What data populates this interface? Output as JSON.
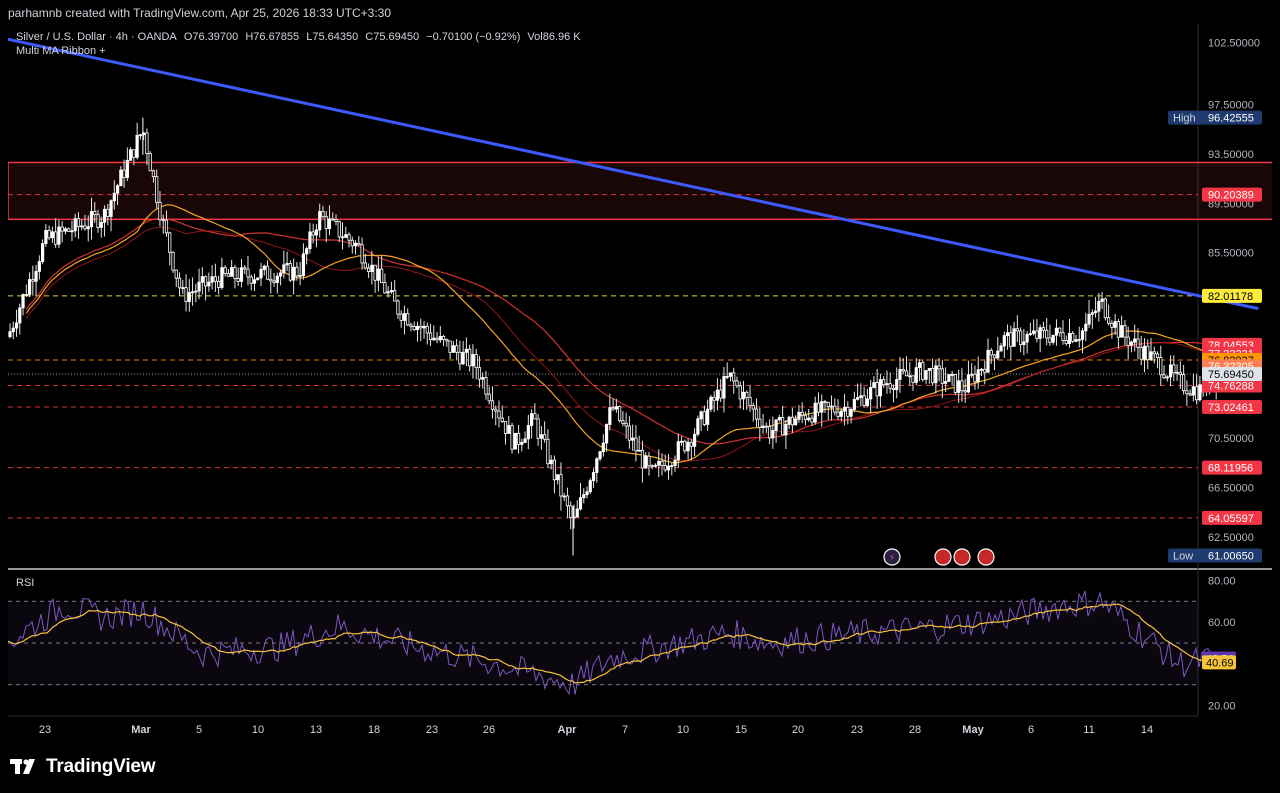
{
  "header": {
    "caption": "parhamnb created with TradingView.com, Apr 25, 2026 18:33 UTC+3:30"
  },
  "legend": {
    "symbol": "Silver / U.S. Dollar · 4h · OANDA",
    "open": "O76.39700",
    "high": "H76.67855",
    "low": "L75.64350",
    "close": "C75.69450",
    "change": "−0.70100 (−0.92%)",
    "volume": "Vol86.96 K",
    "indicator": "Multi MA Ribbon +"
  },
  "rsi": {
    "label": "RSI",
    "value": "42.54",
    "ma_value": "40.69",
    "axis_ticks": [
      "80.00",
      "60.00",
      "20.00"
    ]
  },
  "price_axis": {
    "ticks": [
      "102.50000",
      "97.50000",
      "93.50000",
      "89.50000",
      "85.50000",
      "70.50000",
      "66.50000",
      "62.50000"
    ],
    "high_label": "High",
    "high_value": "96.42555",
    "low_label": "Low",
    "low_value": "61.00650",
    "current_price": "75.69450"
  },
  "time_axis": {
    "ticks": [
      "23",
      "Mar",
      "5",
      "10",
      "13",
      "18",
      "23",
      "26",
      "Apr",
      "7",
      "10",
      "15",
      "20",
      "23",
      "28",
      "May",
      "6",
      "11",
      "14"
    ]
  },
  "levels": [
    {
      "label": "90.20389",
      "value": 90.20389,
      "color": "#f23645",
      "style": "dashed"
    },
    {
      "label": "82.01178",
      "value": 82.01178,
      "color": "#ffeb3b",
      "style": "dashed"
    },
    {
      "label": "78.04553",
      "value": 78.04553,
      "color": "#f23645",
      "style": "none"
    },
    {
      "label": "77.33231",
      "value": 77.33231,
      "color": "#f23645",
      "style": "none"
    },
    {
      "label": "76.82037",
      "value": 76.82037,
      "color": "#ff9800",
      "style": "dashed"
    },
    {
      "label": "76.32305",
      "value": 76.32305,
      "color": "#ff7f50",
      "style": "none"
    },
    {
      "label": "74.76288",
      "value": 74.76288,
      "color": "#f23645",
      "style": "dashed"
    },
    {
      "label": "73.02461",
      "value": 73.02461,
      "color": "#f23645",
      "style": "dashed"
    },
    {
      "label": "68.11956",
      "value": 68.11956,
      "color": "#f23645",
      "style": "dashed"
    },
    {
      "label": "64.05597",
      "value": 64.05597,
      "color": "#f23645",
      "style": "dashed"
    }
  ],
  "footer": {
    "brand": "TradingView"
  },
  "colors": {
    "up": "#ffffff",
    "down": "#ffffff",
    "trendline": "#3d5afe",
    "zone": "#f23645",
    "ma_red": "#e53935",
    "ma_orange": "#f5a623",
    "rsi_line": "#7e57c2",
    "rsi_ma": "#f7c33a"
  },
  "chart_data": {
    "type": "candlestick",
    "title": "Silver / U.S. Dollar · 4h · OANDA",
    "ylim": [
      60.0,
      104.0
    ],
    "x_range": [
      "Feb 22",
      "May 14"
    ],
    "closing_path": [
      {
        "x": "Feb 22",
        "y": 78.3
      },
      {
        "x": "Feb 24",
        "y": 86.5
      },
      {
        "x": "Feb 27",
        "y": 88.5
      },
      {
        "x": "Mar 1",
        "y": 95.5
      },
      {
        "x": "Mar 2",
        "y": 88.0
      },
      {
        "x": "Mar 3",
        "y": 82.0
      },
      {
        "x": "Mar 5",
        "y": 83.5
      },
      {
        "x": "Mar 9",
        "y": 84.0
      },
      {
        "x": "Mar 10",
        "y": 88.5
      },
      {
        "x": "Mar 12",
        "y": 86.0
      },
      {
        "x": "Mar 14",
        "y": 81.0
      },
      {
        "x": "Mar 16",
        "y": 78.5
      },
      {
        "x": "Mar 18",
        "y": 76.5
      },
      {
        "x": "Mar 20",
        "y": 70.0
      },
      {
        "x": "Mar 21",
        "y": 72.0
      },
      {
        "x": "Mar 23",
        "y": 63.5
      },
      {
        "x": "Mar 24",
        "y": 68.0
      },
      {
        "x": "Mar 25",
        "y": 73.0
      },
      {
        "x": "Mar 27",
        "y": 67.5
      },
      {
        "x": "Mar 29",
        "y": 70.5
      },
      {
        "x": "Mar 31",
        "y": 75.5
      },
      {
        "x": "Apr 2",
        "y": 71.0
      },
      {
        "x": "Apr 4",
        "y": 72.5
      },
      {
        "x": "Apr 6",
        "y": 73.0
      },
      {
        "x": "Apr 8",
        "y": 75.0
      },
      {
        "x": "Apr 10",
        "y": 76.0
      },
      {
        "x": "Apr 12",
        "y": 74.5
      },
      {
        "x": "Apr 14",
        "y": 78.5
      },
      {
        "x": "Apr 16",
        "y": 78.8
      },
      {
        "x": "Apr 18",
        "y": 79.0
      },
      {
        "x": "Apr 19",
        "y": 81.5
      },
      {
        "x": "Apr 20",
        "y": 79.0
      },
      {
        "x": "Apr 22",
        "y": 76.5
      },
      {
        "x": "Apr 23",
        "y": 75.0
      },
      {
        "x": "Apr 24",
        "y": 74.3
      },
      {
        "x": "Apr 25",
        "y": 75.69
      }
    ],
    "high": 96.42555,
    "low": 61.0065,
    "trendline": [
      {
        "x": "Feb 22",
        "y": 102.8
      },
      {
        "x": "Apr 27",
        "y": 81.0
      }
    ],
    "resistance_zone": {
      "from": "Feb 22",
      "to": "May 5",
      "top": 92.8,
      "bottom": 88.2
    },
    "rsi": {
      "ylim": [
        15,
        85
      ],
      "levels": [
        70,
        50,
        30
      ],
      "path": [
        {
          "x": "Feb 22",
          "y": 50
        },
        {
          "x": "Feb 25",
          "y": 68
        },
        {
          "x": "Feb 27",
          "y": 62
        },
        {
          "x": "Mar 1",
          "y": 66
        },
        {
          "x": "Mar 4",
          "y": 45
        },
        {
          "x": "Mar 8",
          "y": 48
        },
        {
          "x": "Mar 11",
          "y": 58
        },
        {
          "x": "Mar 15",
          "y": 48
        },
        {
          "x": "Mar 19",
          "y": 40
        },
        {
          "x": "Mar 23",
          "y": 30
        },
        {
          "x": "Mar 25",
          "y": 43
        },
        {
          "x": "Mar 28",
          "y": 49
        },
        {
          "x": "Mar 31",
          "y": 55
        },
        {
          "x": "Apr 2",
          "y": 50
        },
        {
          "x": "Apr 6",
          "y": 54
        },
        {
          "x": "Apr 10",
          "y": 57
        },
        {
          "x": "Apr 14",
          "y": 62
        },
        {
          "x": "Apr 17",
          "y": 68
        },
        {
          "x": "Apr 19",
          "y": 70
        },
        {
          "x": "Apr 21",
          "y": 55
        },
        {
          "x": "Apr 23",
          "y": 40
        },
        {
          "x": "Apr 25",
          "y": 42.54
        }
      ]
    }
  }
}
